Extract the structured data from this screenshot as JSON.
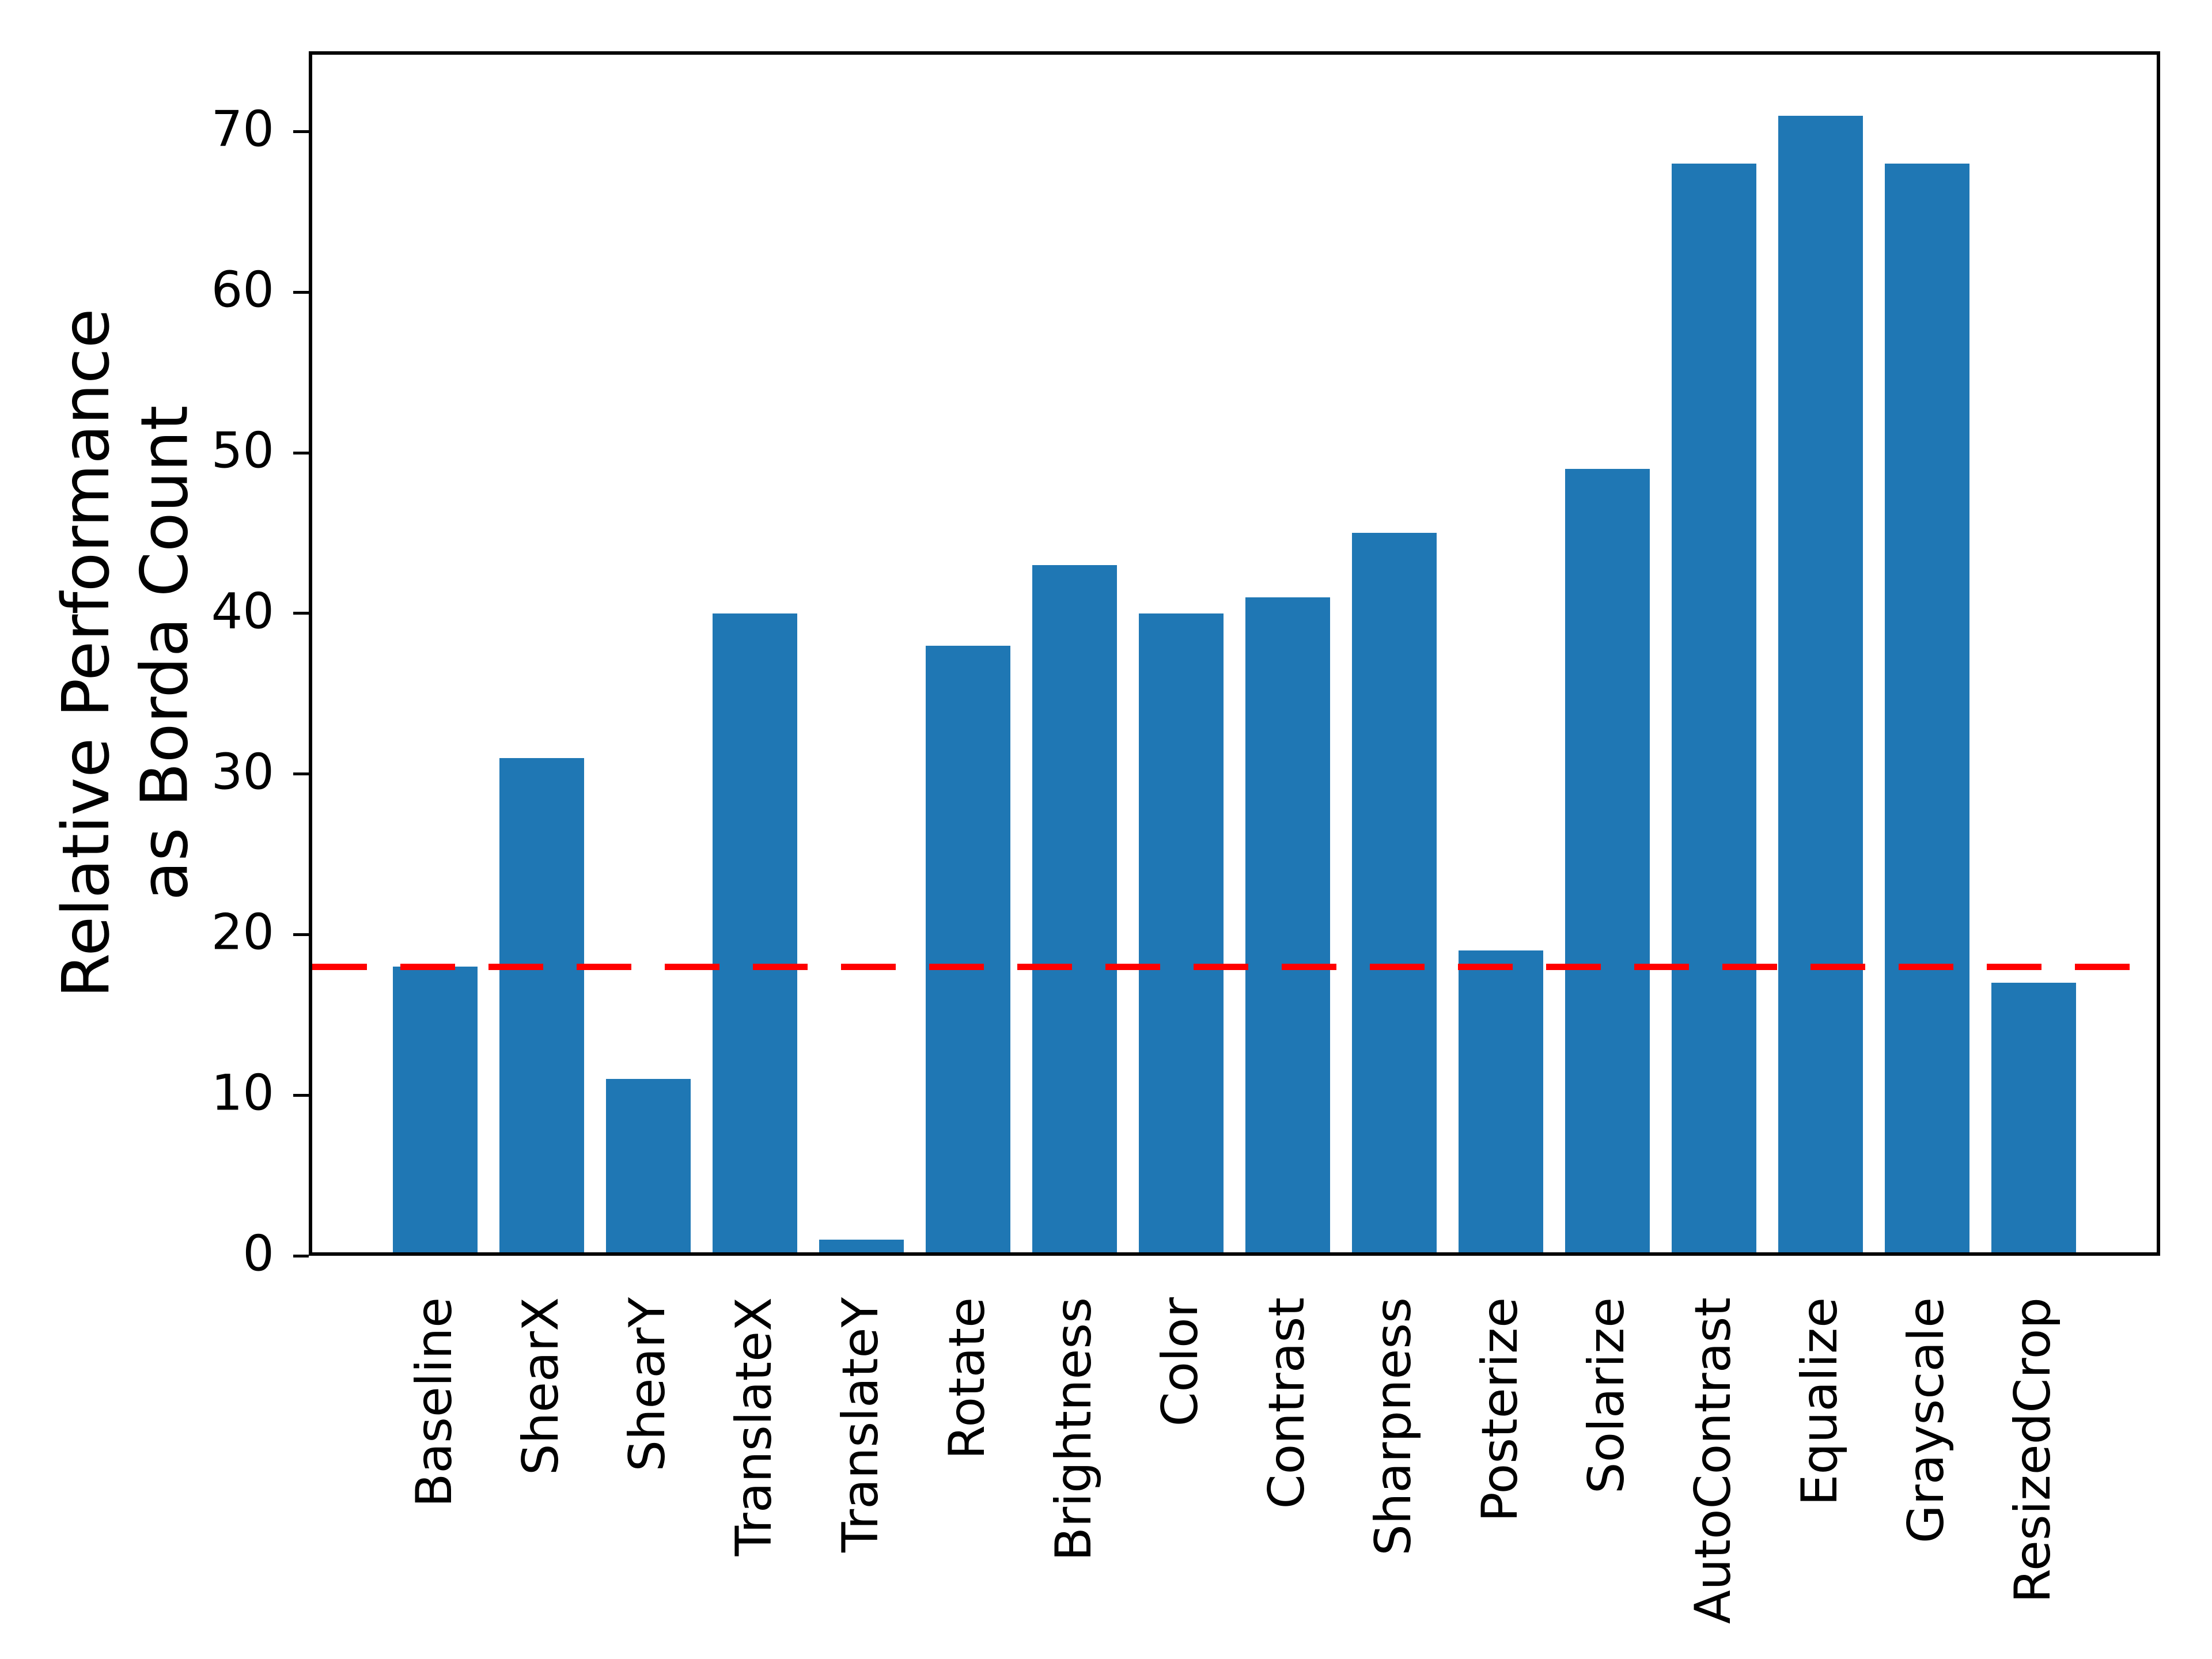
{
  "chart_data": {
    "type": "bar",
    "title": "",
    "xlabel": "",
    "ylabel": "Relative Performance\nas Borda Count",
    "ylabel_lines": [
      "Relative Performance",
      "as Borda Count"
    ],
    "categories": [
      "Baseline",
      "ShearX",
      "ShearY",
      "TranslateX",
      "TranslateY",
      "Rotate",
      "Brightness",
      "Color",
      "Contrast",
      "Sharpness",
      "Posterize",
      "Solarize",
      "AutoContrast",
      "Equalize",
      "Grayscale",
      "ResizedCrop"
    ],
    "values": [
      18,
      31,
      11,
      40,
      1,
      38,
      43,
      40,
      41,
      45,
      19,
      49,
      68,
      71,
      68,
      17
    ],
    "yticks": [
      0,
      10,
      20,
      30,
      40,
      50,
      60,
      70
    ],
    "ylim": [
      0,
      75
    ],
    "grid": false,
    "legend": null,
    "bar_color": "#1f77b4",
    "axis_color": "#000000",
    "reference_line": {
      "value": 18,
      "color": "#ff0000",
      "style": "dashed"
    }
  }
}
